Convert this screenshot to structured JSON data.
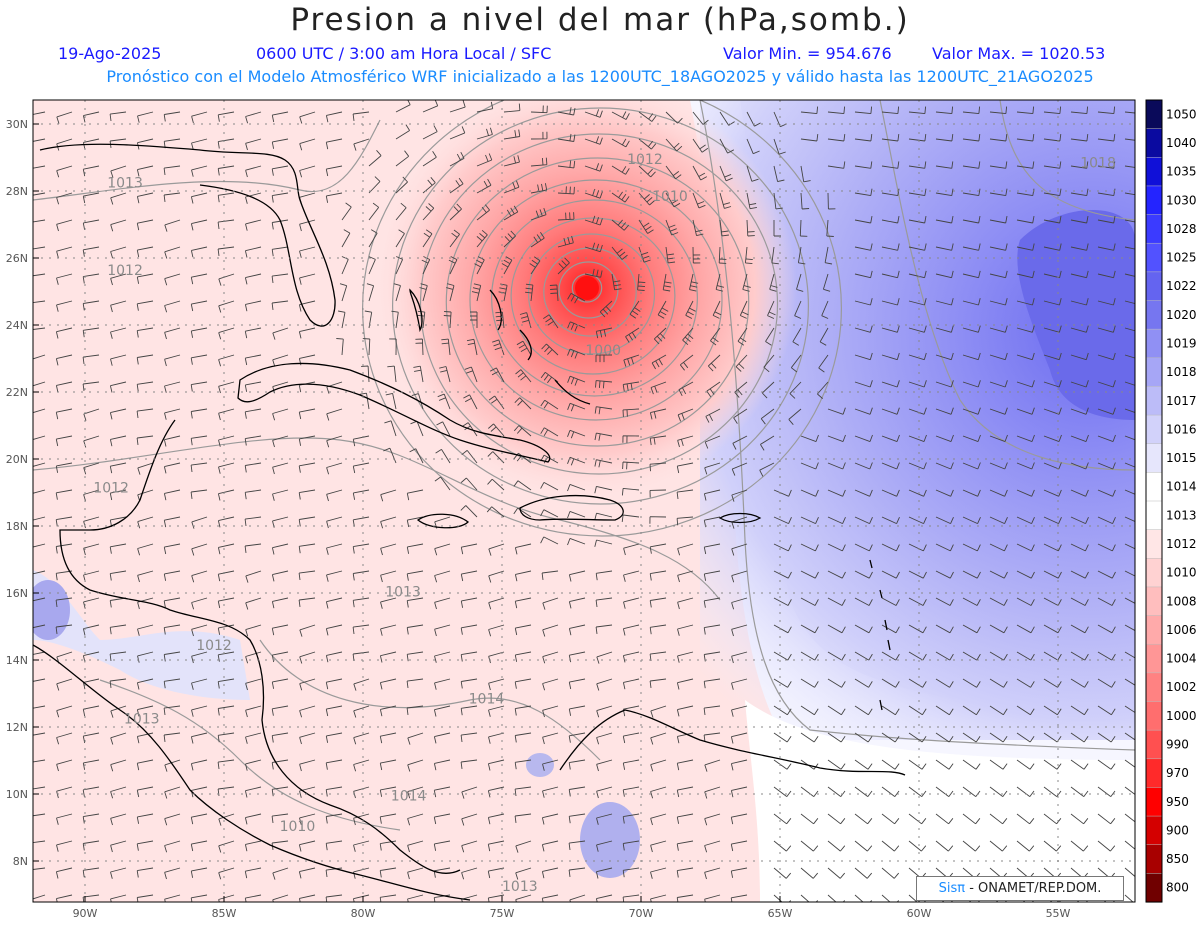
{
  "header": {
    "title": "Presion a nivel del mar (hPa,somb.)",
    "date": "19-Ago-2025",
    "time": "0600 UTC / 3:00 am Hora Local / SFC",
    "min_label": "Valor Min. = 954.676",
    "max_label": "Valor Max. = 1020.53",
    "forecast": "Pronóstico con el Modelo Atmosférico WRF inicializado a las 1200UTC_18AGO2025 y válido hasta las  1200UTC_21AGO2025"
  },
  "axes": {
    "lat_labels": [
      "30N",
      "28N",
      "26N",
      "24N",
      "22N",
      "20N",
      "18N",
      "16N",
      "14N",
      "12N",
      "10N",
      "8N"
    ],
    "lon_labels": [
      "90W",
      "85W",
      "80W",
      "75W",
      "70W",
      "65W",
      "60W",
      "55W"
    ]
  },
  "colorbar": {
    "levels": [
      "1050",
      "1040",
      "1035",
      "1030",
      "1028",
      "1025",
      "1022",
      "1020",
      "1019",
      "1018",
      "1017",
      "1016",
      "1015",
      "1014",
      "1013",
      "1012",
      "1010",
      "1008",
      "1006",
      "1004",
      "1002",
      "1000",
      "990",
      "970",
      "950",
      "900",
      "850",
      "800"
    ],
    "colors": [
      "#0a0a5a",
      "#0a0aa0",
      "#1010d8",
      "#2424ff",
      "#3b3bff",
      "#5252ff",
      "#6464f0",
      "#7676f0",
      "#9090f4",
      "#a6a6f6",
      "#bcbcf8",
      "#d2d2fa",
      "#e6e6fc",
      "#ffffff",
      "#ffffff",
      "#ffe6e6",
      "#ffd2d2",
      "#ffbebe",
      "#ffaaaa",
      "#ff9696",
      "#ff8282",
      "#ff6e6e",
      "#ff5050",
      "#ff2a2a",
      "#ff0000",
      "#d40000",
      "#a80000",
      "#700000"
    ]
  },
  "contour_labels": [
    {
      "text": "1012",
      "lon": -70.5,
      "lat": 28.8
    },
    {
      "text": "1010",
      "lon": -69.6,
      "lat": 27.7
    },
    {
      "text": "1013",
      "lon": -89.2,
      "lat": 28.1
    },
    {
      "text": "1012",
      "lon": -89.2,
      "lat": 25.5
    },
    {
      "text": "1012",
      "lon": -89.7,
      "lat": 19.0
    },
    {
      "text": "1012",
      "lon": -86.0,
      "lat": 14.3
    },
    {
      "text": "1013",
      "lon": -88.6,
      "lat": 12.1
    },
    {
      "text": "1013",
      "lon": -79.2,
      "lat": 15.9
    },
    {
      "text": "1014",
      "lon": -76.2,
      "lat": 12.7
    },
    {
      "text": "1014",
      "lon": -79.0,
      "lat": 9.8
    },
    {
      "text": "1010",
      "lon": -83.0,
      "lat": 8.9
    },
    {
      "text": "1013",
      "lon": -75.0,
      "lat": 7.1
    },
    {
      "text": "1018",
      "lon": -54.2,
      "lat": 28.7
    },
    {
      "text": "1000",
      "lon": -72.0,
      "lat": 23.1
    }
  ],
  "legend": {
    "credit_a": "Sis",
    "credit_b": "π",
    "credit_c": " - ONAMET/REP.DOM."
  }
}
